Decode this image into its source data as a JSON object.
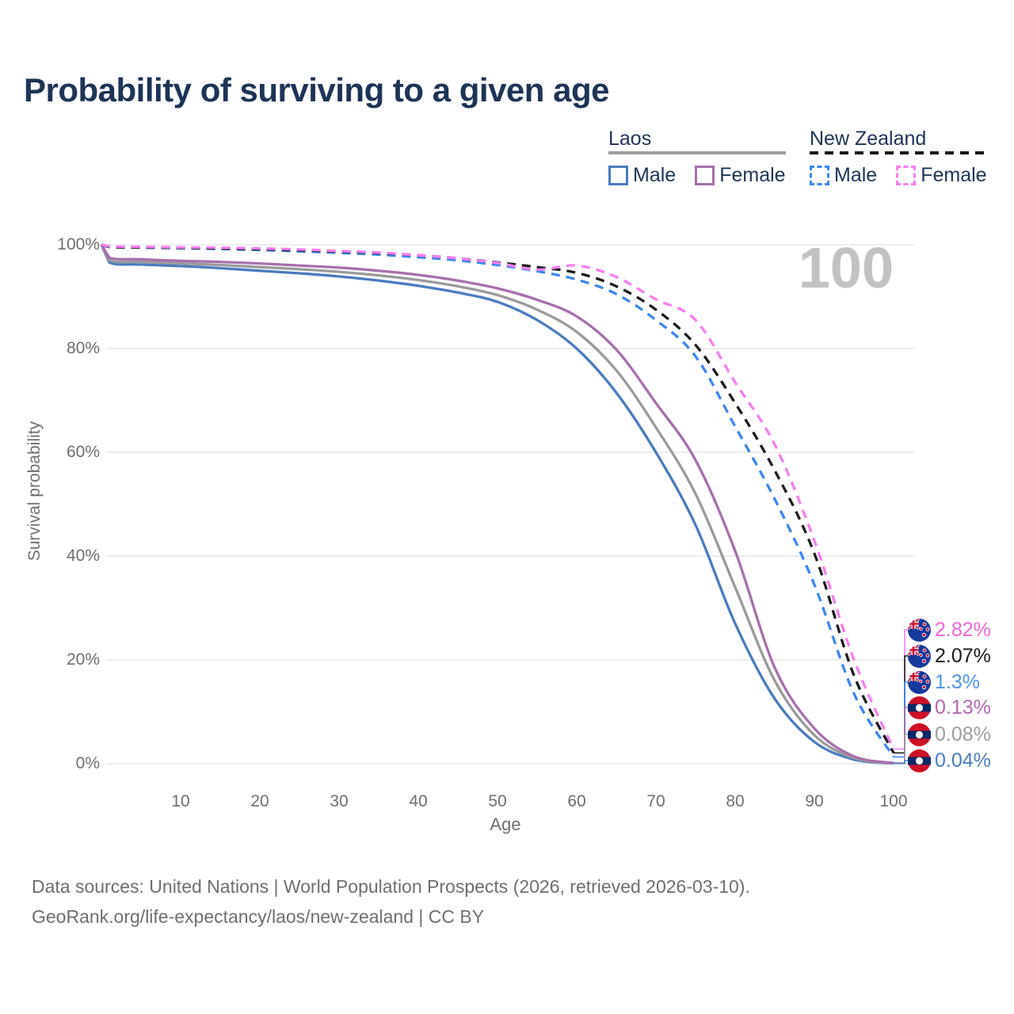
{
  "title": "Probability of surviving to a given age",
  "watermark": "100",
  "colors": {
    "title": "#1d3456",
    "axis_text": "#6f6f6f",
    "grid": "#e7e7e7",
    "watermark": "#c2c2c2",
    "footer_text": "#6f6f6f",
    "legend_text": "#1d3456"
  },
  "legend": {
    "groups": [
      {
        "label": "Laos",
        "line_style": "solid",
        "underline_color": "#9e9e9e",
        "items": [
          {
            "label": "Male",
            "color": "#4a7cc0"
          },
          {
            "label": "Female",
            "color": "#a86fad"
          }
        ]
      },
      {
        "label": "New Zealand",
        "line_style": "dashed",
        "underline_color": "#1a1a1a",
        "items": [
          {
            "label": "Male",
            "color": "#3c87f0"
          },
          {
            "label": "Female",
            "color": "#f77ef1"
          }
        ]
      }
    ]
  },
  "chart_data": {
    "type": "line",
    "title": "Probability of surviving to a given age",
    "xlabel": "Age",
    "ylabel": "Survival probability",
    "xlim": [
      0,
      100
    ],
    "ylim": [
      0,
      100
    ],
    "grid": "horizontal-only",
    "legend_position": "top-right",
    "x_ticks": [
      10,
      20,
      30,
      40,
      50,
      60,
      70,
      80,
      90,
      100
    ],
    "y_ticks": [
      {
        "value": 0,
        "label": "0%"
      },
      {
        "value": 20,
        "label": "20%"
      },
      {
        "value": 40,
        "label": "40%"
      },
      {
        "value": 60,
        "label": "60%"
      },
      {
        "value": 80,
        "label": "80%"
      },
      {
        "value": 100,
        "label": "100%"
      }
    ],
    "x": [
      0,
      1,
      5,
      10,
      15,
      20,
      25,
      30,
      35,
      40,
      45,
      50,
      55,
      60,
      65,
      70,
      75,
      80,
      85,
      90,
      95,
      100
    ],
    "series": [
      {
        "name": "Laos — Male",
        "country": "Laos",
        "sex": "Male",
        "flag": "laos",
        "color": "#4a7cc0",
        "label_color": "#4a7cc0",
        "dash": false,
        "end_label": "0.04%",
        "end_value": 0.04,
        "values": [
          100,
          96.6,
          96.2,
          95.9,
          95.5,
          95.0,
          94.5,
          93.9,
          93.1,
          92.1,
          90.8,
          89.0,
          85.5,
          80.0,
          71.5,
          60.0,
          46.0,
          27.0,
          12.5,
          4.2,
          0.8,
          0.04
        ]
      },
      {
        "name": "Laos — Both sexes",
        "country": "Laos",
        "sex": "Both sexes",
        "flag": "laos",
        "color": "#9a9a9a",
        "label_color": "#9e9e9e",
        "dash": false,
        "end_label": "0.08%",
        "end_value": 0.08,
        "values": [
          100,
          97.0,
          96.7,
          96.4,
          96.1,
          95.7,
          95.3,
          94.8,
          94.1,
          93.2,
          92.0,
          90.3,
          87.5,
          83.2,
          75.8,
          64.8,
          52.0,
          34.0,
          16.0,
          5.5,
          1.1,
          0.08
        ]
      },
      {
        "name": "Laos — Female",
        "country": "Laos",
        "sex": "Female",
        "flag": "laos",
        "color": "#a86fad",
        "label_color": "#b168b1",
        "dash": false,
        "end_label": "0.13%",
        "end_value": 0.13,
        "values": [
          100,
          97.5,
          97.2,
          96.9,
          96.7,
          96.4,
          96.0,
          95.6,
          95.0,
          94.2,
          93.1,
          91.6,
          89.4,
          86.2,
          79.8,
          69.5,
          58.5,
          41.0,
          18.5,
          6.8,
          1.4,
          0.13
        ]
      },
      {
        "name": "New Zealand — Male",
        "country": "New Zealand",
        "sex": "Male",
        "flag": "new-zealand",
        "color": "#3c87f0",
        "label_color": "#4b94f5",
        "dash": true,
        "end_label": "1.3%",
        "end_value": 1.3,
        "values": [
          100,
          99.55,
          99.45,
          99.35,
          99.2,
          99.0,
          98.75,
          98.45,
          98.1,
          97.6,
          97.0,
          96.1,
          94.9,
          93.3,
          90.5,
          85.5,
          78.5,
          65.0,
          51.0,
          34.5,
          13.5,
          1.3
        ]
      },
      {
        "name": "New Zealand — Both sexes",
        "country": "New Zealand",
        "sex": "Both sexes",
        "flag": "new-zealand",
        "color": "#1c1c1c",
        "label_color": "#1a1a1a",
        "dash": true,
        "end_label": "2.07%",
        "end_value": 2.07,
        "values": [
          100,
          99.6,
          99.5,
          99.4,
          99.3,
          99.15,
          98.95,
          98.7,
          98.4,
          98.0,
          97.4,
          96.6,
          95.7,
          94.6,
          92.0,
          87.5,
          80.7,
          69.5,
          56.5,
          40.5,
          17.0,
          2.07
        ]
      },
      {
        "name": "New Zealand — Female",
        "country": "New Zealand",
        "sex": "Female",
        "flag": "new-zealand",
        "color": "#f77ef1",
        "label_color": "#f564d9",
        "dash": true,
        "end_label": "2.82%",
        "end_value": 2.82,
        "values": [
          100,
          99.7,
          99.6,
          99.5,
          99.45,
          99.3,
          99.1,
          98.8,
          98.5,
          98.0,
          97.4,
          96.5,
          95.2,
          96.0,
          93.8,
          89.5,
          85.5,
          73.5,
          61.5,
          43.0,
          20.0,
          2.82
        ]
      }
    ]
  },
  "footer": {
    "sources": "Data sources: United Nations | World Population Prospects (2026, retrieved 2026-03-10).",
    "link": "GeoRank.org/life-expectancy/laos/new-zealand | CC BY"
  }
}
